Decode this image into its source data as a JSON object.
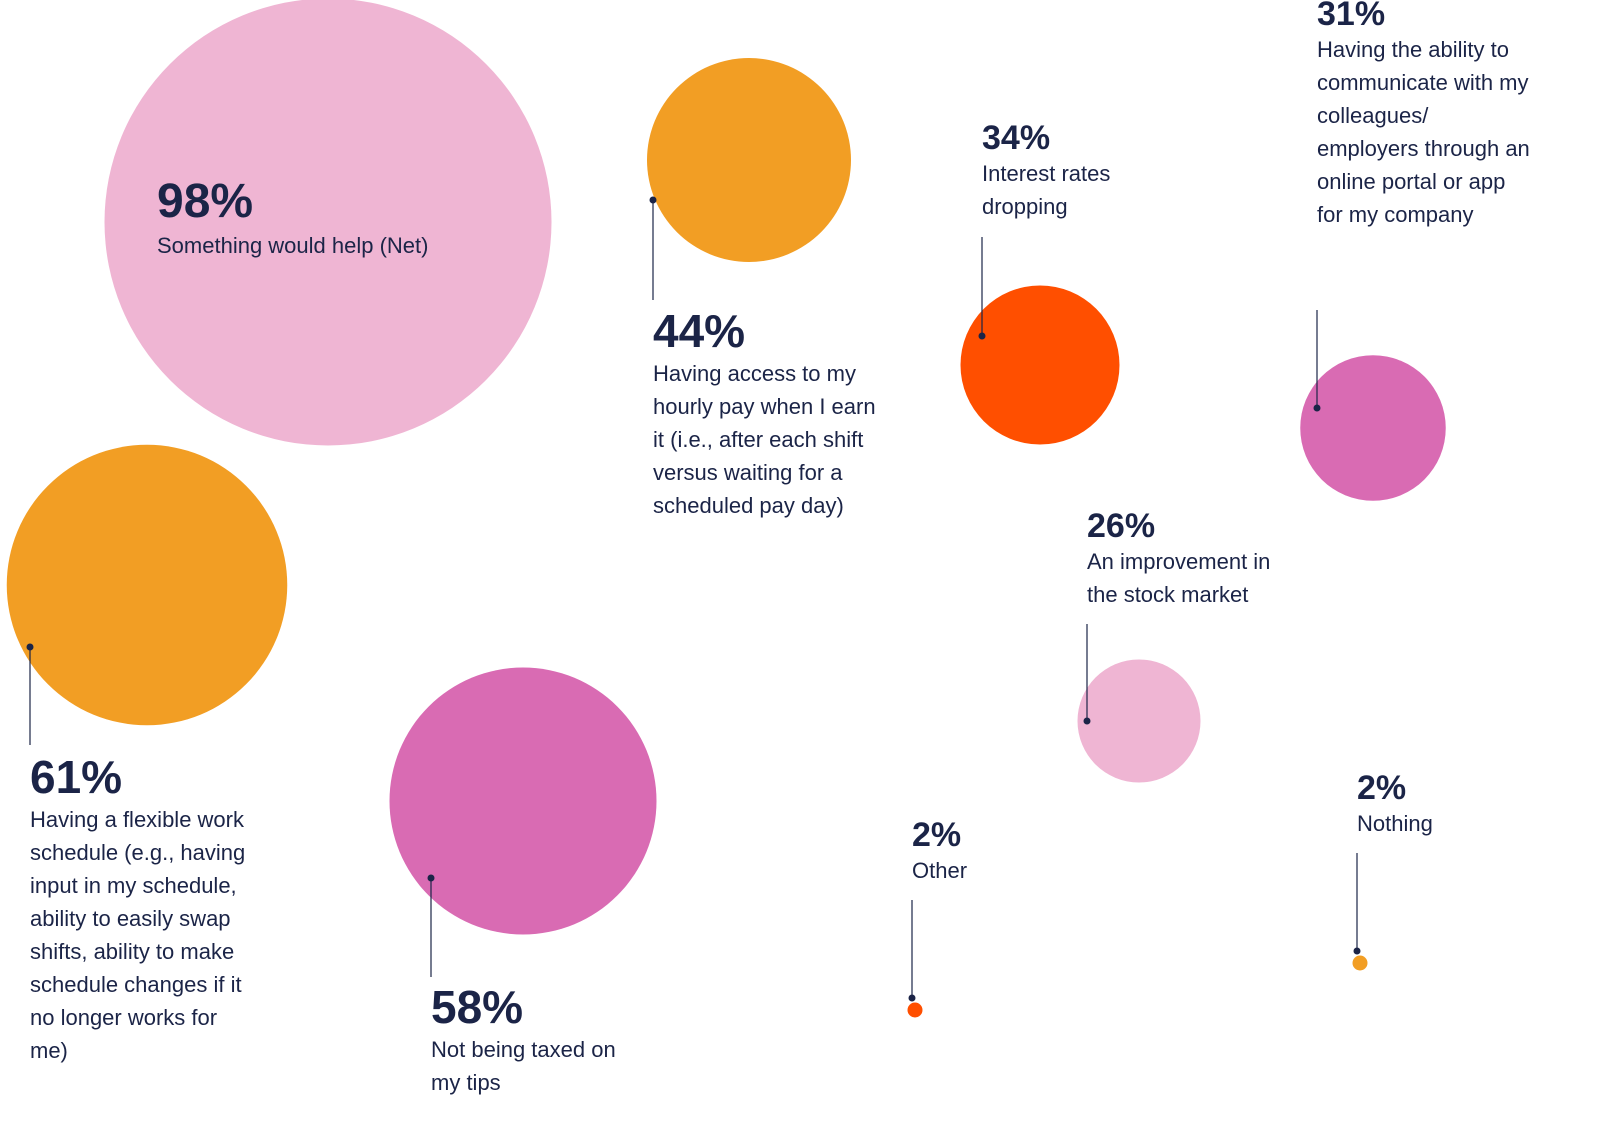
{
  "chart_data": {
    "type": "bubble",
    "categories": [
      "Something would help (Net)",
      "Having access to my hourly pay when I earn it (i.e., after each shift versus waiting for a scheduled pay day)",
      "Interest rates dropping",
      "Having the ability to communicate with my colleagues/ employers through an online portal or app for my company",
      "Having a flexible work schedule (e.g., having input in my schedule, ability to easily swap shifts, ability to make schedule changes if it no longer works for me)",
      "Not being taxed on my tips",
      "An improvement in the stock market",
      "Other",
      "Nothing"
    ],
    "values": [
      98,
      44,
      34,
      31,
      61,
      58,
      26,
      2,
      2
    ],
    "value_labels": [
      "98%",
      "44%",
      "34%",
      "31%",
      "61%",
      "58%",
      "26%",
      "2%",
      "2%"
    ],
    "colors": [
      "#efb5d3",
      "#f29e24",
      "#ff4f00",
      "#d96bb3",
      "#f29e24",
      "#d96bb3",
      "#efb5d3",
      "#ff4f00",
      "#f29e24"
    ]
  }
}
